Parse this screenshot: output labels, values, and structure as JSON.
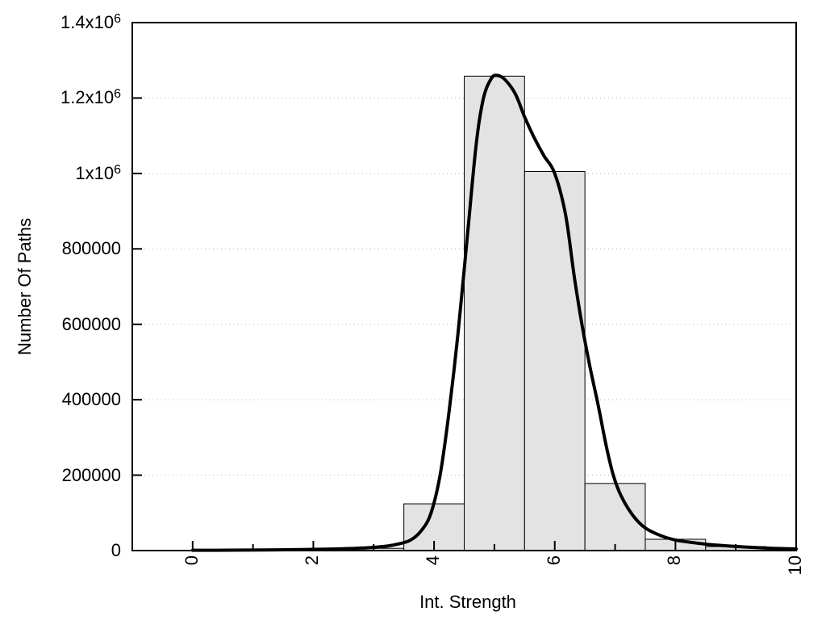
{
  "chart_data": {
    "type": "histogram",
    "title": "",
    "xlabel": "Int. Strength",
    "ylabel": "Number Of Paths",
    "xlim": [
      -1,
      10
    ],
    "ylim": [
      0,
      1400000
    ],
    "bin_width": 1,
    "bin_centers": [
      0,
      1,
      2,
      3,
      4,
      5,
      6,
      7,
      8,
      9,
      10
    ],
    "counts": [
      0,
      0,
      0,
      6000,
      124000,
      1258000,
      1005000,
      178000,
      30000,
      10500,
      5000
    ],
    "fit_curve": {
      "name": "fit-line",
      "points": [
        [
          0,
          800
        ],
        [
          0.6,
          1100
        ],
        [
          1.2,
          1700
        ],
        [
          1.8,
          2600
        ],
        [
          2.3,
          4000
        ],
        [
          2.7,
          6000
        ],
        [
          3.0,
          8500
        ],
        [
          3.3,
          14000
        ],
        [
          3.6,
          27000
        ],
        [
          3.8,
          55000
        ],
        [
          3.95,
          100000
        ],
        [
          4.1,
          200000
        ],
        [
          4.25,
          370000
        ],
        [
          4.4,
          580000
        ],
        [
          4.55,
          830000
        ],
        [
          4.7,
          1080000
        ],
        [
          4.82,
          1200000
        ],
        [
          4.95,
          1252000
        ],
        [
          5.05,
          1260000
        ],
        [
          5.18,
          1248000
        ],
        [
          5.35,
          1210000
        ],
        [
          5.5,
          1150000
        ],
        [
          5.65,
          1098000
        ],
        [
          5.82,
          1047000
        ],
        [
          6.0,
          1000000
        ],
        [
          6.18,
          890000
        ],
        [
          6.32,
          730000
        ],
        [
          6.45,
          600000
        ],
        [
          6.58,
          490000
        ],
        [
          6.72,
          385000
        ],
        [
          6.85,
          280000
        ],
        [
          6.97,
          200000
        ],
        [
          7.1,
          145000
        ],
        [
          7.3,
          92000
        ],
        [
          7.5,
          60000
        ],
        [
          7.75,
          40000
        ],
        [
          8.0,
          28000
        ],
        [
          8.3,
          21000
        ],
        [
          8.6,
          15500
        ],
        [
          9.0,
          11000
        ],
        [
          9.4,
          7500
        ],
        [
          9.7,
          5500
        ],
        [
          10.0,
          4200
        ]
      ]
    },
    "xticks": {
      "labeled": [
        {
          "v": 0,
          "label": "0"
        },
        {
          "v": 2,
          "label": "2"
        },
        {
          "v": 4,
          "label": "4"
        },
        {
          "v": 6,
          "label": "6"
        },
        {
          "v": 8,
          "label": "8"
        },
        {
          "v": 10,
          "label": "10"
        }
      ],
      "minor": [
        1,
        3,
        5,
        7,
        9
      ]
    },
    "yticks": [
      {
        "v": 0,
        "base": "0",
        "exp": ""
      },
      {
        "v": 200000,
        "base": "200000",
        "exp": ""
      },
      {
        "v": 400000,
        "base": "400000",
        "exp": ""
      },
      {
        "v": 600000,
        "base": "600000",
        "exp": ""
      },
      {
        "v": 800000,
        "base": "800000",
        "exp": ""
      },
      {
        "v": 1000000,
        "base": "1x10",
        "exp": "6"
      },
      {
        "v": 1200000,
        "base": "1.2x10",
        "exp": "6"
      },
      {
        "v": 1400000,
        "base": "1.4x10",
        "exp": "6"
      }
    ],
    "grid": {
      "horizontal": true,
      "vertical": false,
      "style": "dotted"
    },
    "legend": {
      "visible": false
    },
    "colors": {
      "bar_fill": "#e3e3e3",
      "bar_edge": "#000000",
      "curve": "#000000",
      "grid": "#b5b5b5",
      "axis": "#000000",
      "background": "#ffffff"
    }
  }
}
